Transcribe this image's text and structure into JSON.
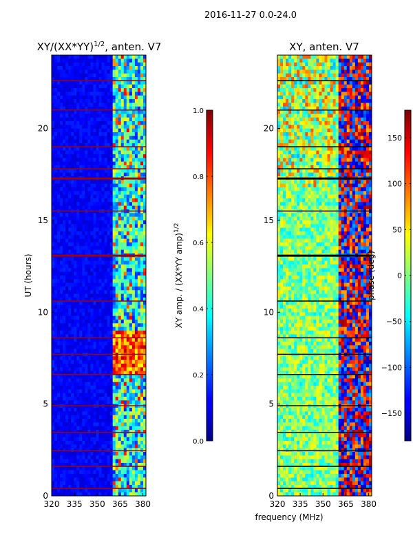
{
  "figure": {
    "suptitle": "2016-11-27 0.0-24.0",
    "xlabel": "frequency (MHz)"
  },
  "chart_data": [
    {
      "type": "heatmap",
      "title_main": "XY/(XX*YY)",
      "title_sup": "1/2",
      "title_rest": ", anten. V7",
      "xlabel": "",
      "ylabel": "UT (hours)",
      "xlim": [
        320,
        382
      ],
      "ylim": [
        0,
        24
      ],
      "xticks": [
        320,
        335,
        350,
        365,
        380
      ],
      "yticks": [
        0,
        5,
        10,
        15,
        20
      ],
      "colormap": "jet",
      "colorbar": {
        "label_main": "XY amp. / (XX*YY amp)",
        "label_sup": "1/2",
        "range": [
          0.0,
          1.0
        ],
        "ticks": [
          0.0,
          0.2,
          0.4,
          0.6,
          0.8,
          1.0
        ],
        "tick_labels": [
          "0.0",
          "0.2",
          "0.4",
          "0.6",
          "0.8",
          "1.0"
        ]
      }
    },
    {
      "type": "heatmap",
      "title": "XY, anten. V7",
      "xlabel": "frequency (MHz)",
      "ylabel": "",
      "xlim": [
        320,
        382
      ],
      "ylim": [
        0,
        24
      ],
      "xticks": [
        320,
        335,
        350,
        365,
        380
      ],
      "yticks": [
        0,
        5,
        10,
        15,
        20
      ],
      "colormap": "jet",
      "colorbar": {
        "label": "phase (deg)",
        "range": [
          -180,
          180
        ],
        "ticks": [
          -150,
          -100,
          -50,
          0,
          50,
          100,
          150
        ],
        "tick_labels": [
          "−150",
          "−100",
          "−50",
          "0",
          "50",
          "100",
          "150"
        ]
      }
    }
  ]
}
